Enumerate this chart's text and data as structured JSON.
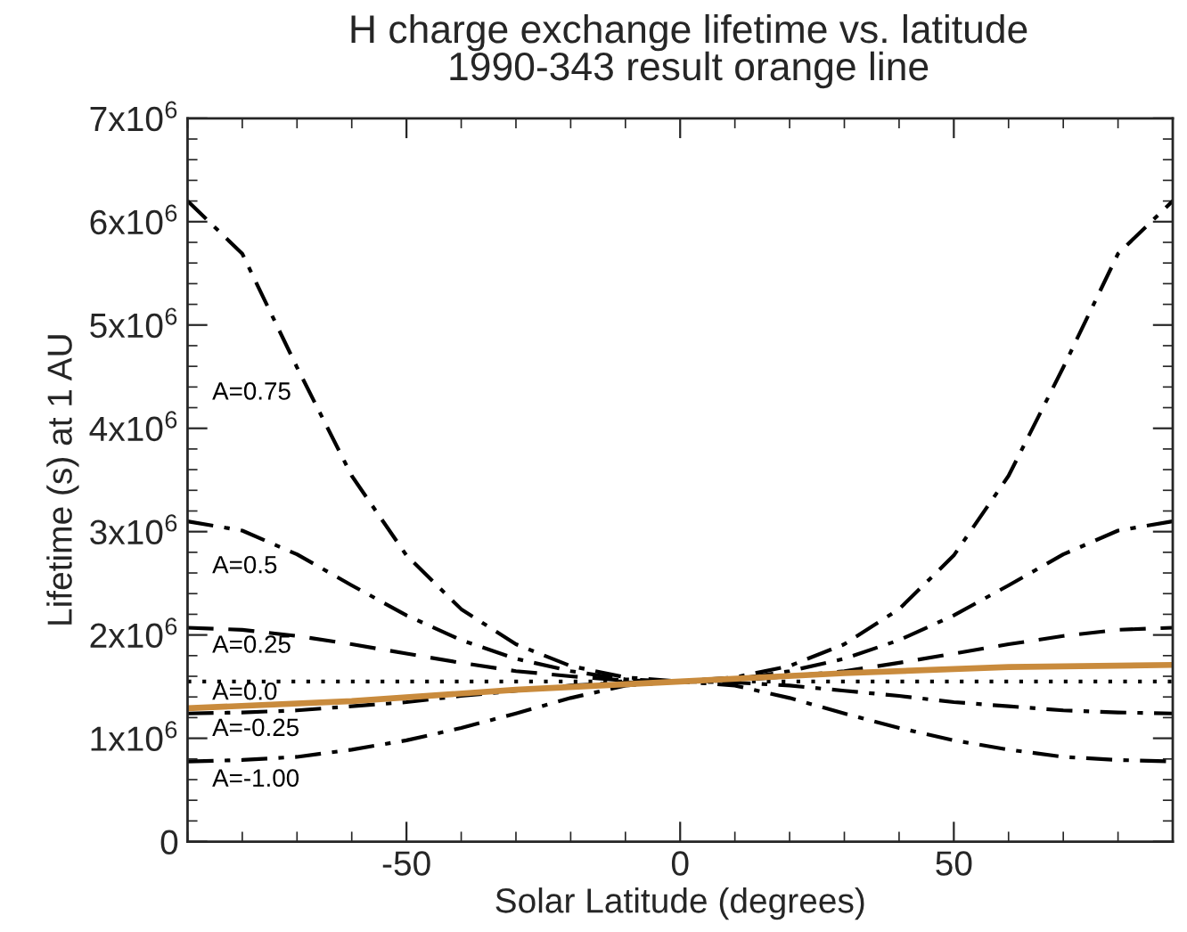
{
  "chart_data": {
    "type": "line",
    "title": "H charge exchange lifetime vs. latitude",
    "subtitle": "1990-343 result orange line",
    "xlabel": "Solar Latitude (degrees)",
    "ylabel": "Lifetime (s) at 1 AU",
    "x": [
      -90,
      -80,
      -70,
      -60,
      -50,
      -40,
      -30,
      -20,
      -10,
      0,
      10,
      20,
      30,
      40,
      50,
      60,
      70,
      80,
      90
    ],
    "series": [
      {
        "name": "A=0.75",
        "color": "#000000",
        "line_style": "dashdot",
        "values": [
          6200000,
          5690000,
          4590000,
          3540000,
          2770000,
          2250000,
          1910000,
          1700000,
          1590000,
          1550000,
          1590000,
          1700000,
          1910000,
          2250000,
          2770000,
          3540000,
          4590000,
          5690000,
          6200000
        ]
      },
      {
        "name": "A=0.5",
        "color": "#000000",
        "line_style": "dashdot",
        "values": [
          3100000,
          3010000,
          2780000,
          2480000,
          2190000,
          1950000,
          1770000,
          1650000,
          1570000,
          1550000,
          1570000,
          1650000,
          1770000,
          1950000,
          2190000,
          2480000,
          2780000,
          3010000,
          3100000
        ]
      },
      {
        "name": "A=0.25",
        "color": "#000000",
        "line_style": "dashed",
        "values": [
          2070000,
          2050000,
          1990000,
          1910000,
          1820000,
          1730000,
          1650000,
          1600000,
          1560000,
          1550000,
          1560000,
          1600000,
          1650000,
          1730000,
          1820000,
          1910000,
          1990000,
          2050000,
          2070000
        ]
      },
      {
        "name": "A=0.0",
        "color": "#000000",
        "line_style": "dotted",
        "values": [
          1550000,
          1550000,
          1550000,
          1550000,
          1550000,
          1550000,
          1550000,
          1550000,
          1550000,
          1550000,
          1550000,
          1550000,
          1550000,
          1550000,
          1550000,
          1550000,
          1550000,
          1550000,
          1550000
        ]
      },
      {
        "name": "A=-0.25",
        "color": "#000000",
        "line_style": "dashdot",
        "values": [
          1240000,
          1250000,
          1270000,
          1310000,
          1350000,
          1410000,
          1460000,
          1510000,
          1540000,
          1550000,
          1540000,
          1510000,
          1460000,
          1410000,
          1350000,
          1310000,
          1270000,
          1250000,
          1240000
        ]
      },
      {
        "name": "A=-1.00",
        "color": "#000000",
        "line_style": "dashdot",
        "values": [
          775000,
          790000,
          820000,
          890000,
          980000,
          1100000,
          1240000,
          1390000,
          1510000,
          1550000,
          1510000,
          1390000,
          1240000,
          1100000,
          980000,
          890000,
          820000,
          790000,
          775000
        ]
      },
      {
        "color": "#c98b3d",
        "line_style": "solid",
        "x": [
          -90,
          -60,
          -30,
          0,
          30,
          60,
          90
        ],
        "values": [
          1290000,
          1360000,
          1470000,
          1550000,
          1630000,
          1690000,
          1710000
        ]
      }
    ],
    "xlim": [
      -90,
      90
    ],
    "xticks": [
      -50,
      0,
      50
    ],
    "ylim": [
      0,
      7000000
    ],
    "yticks": [
      {
        "value": 0,
        "label": "0"
      },
      {
        "value": 1000000,
        "label": "1x10$^{6}$"
      },
      {
        "value": 2000000,
        "label": "2x10$^{6}$"
      },
      {
        "value": 3000000,
        "label": "3x10$^{6}$"
      },
      {
        "value": 4000000,
        "label": "4x10$^{6}$"
      },
      {
        "value": 5000000,
        "label": "5x10$^{6}$"
      },
      {
        "value": 6000000,
        "label": "6x10$^{6}$"
      },
      {
        "value": 7000000,
        "label": "7x10$^{6}$"
      }
    ],
    "grid": false,
    "legend": false
  }
}
